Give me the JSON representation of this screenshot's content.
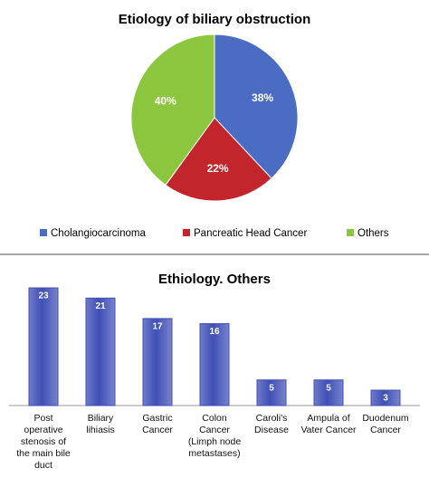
{
  "chart_data": [
    {
      "type": "pie",
      "title": "Etiology of biliary obstruction",
      "categories": [
        "Cholangiocarcinoma",
        "Pancreatic Head Cancer",
        "Others"
      ],
      "values": [
        38,
        22,
        40
      ],
      "value_labels": [
        "38%",
        "22%",
        "40%"
      ],
      "colors": [
        "#4a6cc2",
        "#c3252c",
        "#8cc63e"
      ],
      "legend": "bottom"
    },
    {
      "type": "bar",
      "title": "Ethiology. Others",
      "categories": [
        "Post operative stenosis of the main bile duct",
        "Biliary lihiasis",
        "Gastric Cancer",
        "Colon Cancer (Limph node metastases)",
        "Caroli's Disease",
        "Ampula of Vater Cancer",
        "Duodenum Cancer"
      ],
      "values": [
        23,
        21,
        17,
        16,
        5,
        5,
        3
      ],
      "color": "#3f4fb6"
    }
  ]
}
